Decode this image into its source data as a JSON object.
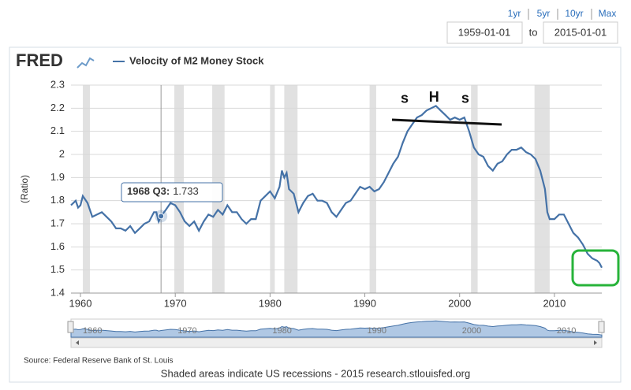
{
  "controls": {
    "range_buttons": [
      "1yr",
      "5yr",
      "10yr",
      "Max"
    ],
    "start_date": "1959-01-01",
    "to": "to",
    "end_date": "2015-01-01"
  },
  "chart_data": {
    "type": "line",
    "logo": "FRED",
    "y_label": "(Ratio)",
    "xlim": [
      1959,
      2015
    ],
    "xticks": [
      1960,
      1970,
      1980,
      1990,
      2000,
      2010
    ],
    "ylim": [
      1.4,
      2.3
    ],
    "yticks": [
      1.4,
      1.5,
      1.6,
      1.7,
      1.8,
      1.9,
      2.0,
      2.1,
      2.2,
      2.3
    ],
    "grid": true,
    "recessions": [
      [
        1960.25,
        1961.0
      ],
      [
        1969.9,
        1970.9
      ],
      [
        1973.9,
        1975.2
      ],
      [
        1980.0,
        1980.5
      ],
      [
        1981.5,
        1982.9
      ],
      [
        1990.5,
        1991.2
      ],
      [
        2001.2,
        2001.9
      ],
      [
        2007.9,
        2009.5
      ]
    ],
    "x": [
      1959.0,
      1959.5,
      1959.75,
      1960.0,
      1960.25,
      1960.75,
      1961.25,
      1961.75,
      1962.25,
      1962.75,
      1963.25,
      1963.75,
      1964.25,
      1964.75,
      1965.25,
      1965.75,
      1966.25,
      1966.75,
      1967.25,
      1967.75,
      1968.0,
      1968.25,
      1968.5,
      1969.0,
      1969.5,
      1970.0,
      1970.5,
      1971.0,
      1971.5,
      1972.0,
      1972.5,
      1973.0,
      1973.5,
      1974.0,
      1974.5,
      1975.0,
      1975.5,
      1976.0,
      1976.5,
      1977.0,
      1977.5,
      1978.0,
      1978.5,
      1979.0,
      1979.5,
      1980.0,
      1980.5,
      1981.0,
      1981.25,
      1981.5,
      1981.75,
      1982.0,
      1982.5,
      1983.0,
      1983.5,
      1984.0,
      1984.5,
      1985.0,
      1985.5,
      1986.0,
      1986.5,
      1987.0,
      1987.5,
      1988.0,
      1988.5,
      1989.0,
      1989.5,
      1990.0,
      1990.5,
      1991.0,
      1991.5,
      1992.0,
      1992.5,
      1993.0,
      1993.5,
      1994.0,
      1994.5,
      1995.0,
      1995.5,
      1996.0,
      1996.5,
      1997.0,
      1997.5,
      1998.0,
      1998.5,
      1999.0,
      1999.5,
      2000.0,
      2000.5,
      2001.0,
      2001.5,
      2002.0,
      2002.5,
      2003.0,
      2003.5,
      2004.0,
      2004.5,
      2005.0,
      2005.5,
      2006.0,
      2006.5,
      2007.0,
      2007.5,
      2008.0,
      2008.5,
      2009.0,
      2009.25,
      2009.5,
      2010.0,
      2010.5,
      2011.0,
      2011.5,
      2012.0,
      2012.5,
      2013.0,
      2013.5,
      2014.0,
      2014.5,
      2014.75,
      2015.0
    ],
    "series": [
      {
        "name": "Velocity of M2 Money Stock",
        "color": "#4572a7",
        "values": [
          1.78,
          1.8,
          1.77,
          1.78,
          1.82,
          1.79,
          1.73,
          1.74,
          1.75,
          1.73,
          1.71,
          1.68,
          1.68,
          1.67,
          1.69,
          1.66,
          1.68,
          1.7,
          1.71,
          1.75,
          1.75,
          1.71,
          1.733,
          1.76,
          1.79,
          1.78,
          1.75,
          1.71,
          1.69,
          1.71,
          1.67,
          1.71,
          1.74,
          1.73,
          1.76,
          1.74,
          1.78,
          1.75,
          1.75,
          1.72,
          1.7,
          1.72,
          1.72,
          1.8,
          1.82,
          1.84,
          1.81,
          1.86,
          1.93,
          1.9,
          1.92,
          1.85,
          1.83,
          1.75,
          1.79,
          1.82,
          1.83,
          1.8,
          1.8,
          1.79,
          1.75,
          1.73,
          1.76,
          1.79,
          1.8,
          1.83,
          1.86,
          1.85,
          1.86,
          1.84,
          1.85,
          1.88,
          1.92,
          1.96,
          1.99,
          2.05,
          2.1,
          2.13,
          2.16,
          2.17,
          2.19,
          2.2,
          2.21,
          2.19,
          2.17,
          2.15,
          2.16,
          2.15,
          2.16,
          2.1,
          2.03,
          2.0,
          1.99,
          1.95,
          1.93,
          1.96,
          1.97,
          2.0,
          2.02,
          2.02,
          2.03,
          2.01,
          2.0,
          1.98,
          1.93,
          1.85,
          1.75,
          1.72,
          1.72,
          1.74,
          1.74,
          1.7,
          1.66,
          1.64,
          1.61,
          1.57,
          1.55,
          1.54,
          1.53,
          1.51
        ]
      }
    ],
    "tooltip_label": "1968 Q3:",
    "annotations": [
      {
        "text": "s",
        "x": 1994.2,
        "y": 2.24
      },
      {
        "text": "H",
        "x": 1997.3,
        "y": 2.245
      },
      {
        "text": "s",
        "x": 2000.6,
        "y": 2.24
      }
    ],
    "source": "Source: Federal Reserve Bank of St. Louis",
    "note": "Shaded areas indicate US recessions - 2015 research.stlouisfed.org"
  }
}
